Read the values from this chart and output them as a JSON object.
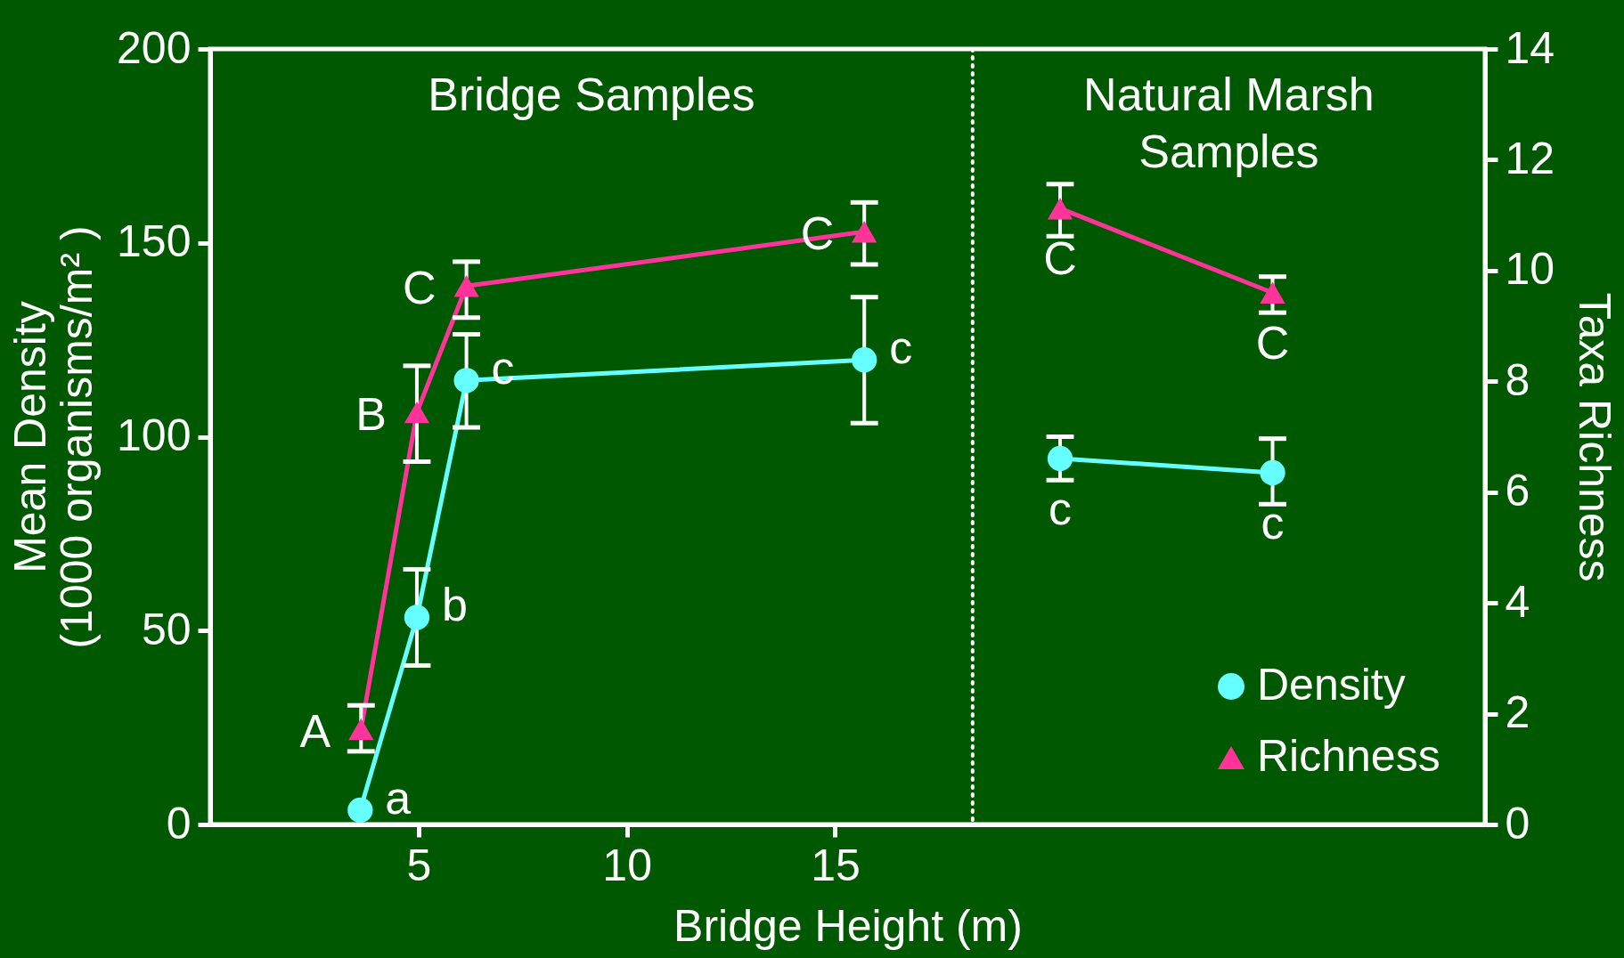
{
  "chart_data": {
    "type": "line",
    "xlabel": "Bridge Height (m)",
    "ylabel": "Mean Density\n(1000 organisms/m² )",
    "y2label": "Taxa Richness",
    "xlim": [
      0,
      30.6
    ],
    "xticks": [
      5,
      10,
      15
    ],
    "ylim": [
      0,
      200
    ],
    "yticks": [
      0,
      50,
      100,
      150,
      200
    ],
    "y2lim": [
      0,
      14
    ],
    "y2ticks": [
      0,
      2,
      4,
      6,
      8,
      10,
      12,
      14
    ],
    "grid": false,
    "legend": "bottom right",
    "line_style": "solid",
    "series": [
      {
        "name": "Density",
        "color": "#66ffff",
        "marker": "circle",
        "x": [
          3.6,
          4.96,
          6.15,
          15.7
        ],
        "values": [
          3.7,
          53.4,
          114.5,
          119.8
        ],
        "errors": [
          null,
          [
            41.0,
            65.8
          ],
          [
            102.4,
            126.4
          ],
          [
            103.5,
            136.0
          ]
        ],
        "value_labels": [
          "a",
          "b",
          "c",
          "c"
        ]
      },
      {
        "color": "#66ffff",
        "marker": "circle",
        "x": [
          20.4,
          25.5
        ],
        "values": [
          94.4,
          90.7
        ],
        "errors": [
          [
            88.8,
            100.0
          ],
          [
            82.6,
            99.5
          ]
        ],
        "value_labels": [
          "c",
          "c"
        ]
      },
      {
        "name": "Richness",
        "color": "#ff3399",
        "marker": "triangle",
        "axis": "y2",
        "x": [
          3.62,
          4.96,
          6.15,
          15.7
        ],
        "values": [
          1.72,
          7.44,
          9.72,
          10.7
        ],
        "errors": [
          [
            1.32,
            2.15
          ],
          [
            6.55,
            8.28
          ],
          [
            9.15,
            10.16
          ],
          [
            10.11,
            11.23
          ]
        ],
        "value_labels": [
          "A",
          "B",
          "C",
          "C"
        ]
      },
      {
        "color": "#ff3399",
        "marker": "triangle",
        "axis": "y2",
        "x": [
          20.4,
          25.5
        ],
        "values": [
          11.12,
          9.6
        ],
        "errors": [
          [
            10.62,
            11.56
          ],
          [
            9.24,
            9.89
          ]
        ],
        "value_labels": [
          "C",
          "C"
        ]
      }
    ],
    "ref_lines": [
      {
        "axis": "x",
        "value": 18.3,
        "label": null,
        "color": "#ffffff",
        "line_style": "dotted"
      }
    ],
    "annotations": [
      "Bridge Samples",
      "Natural Marsh\nSamples"
    ]
  }
}
